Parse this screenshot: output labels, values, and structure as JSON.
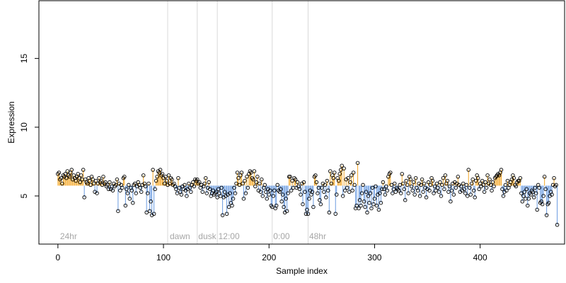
{
  "chart_data": {
    "type": "scatter",
    "title": "",
    "xlabel": "Sample index",
    "ylabel": "Expression",
    "xlim": [
      -18,
      480
    ],
    "ylim": [
      1.5,
      19.2
    ],
    "x_ticks": [
      0,
      100,
      200,
      300,
      400
    ],
    "y_ticks": [
      5,
      10,
      15
    ],
    "baseline": 5.75,
    "grid": false,
    "colors": {
      "above": "#f5a623",
      "below": "#6a9be0",
      "point_stroke": "#000000",
      "vline": "#d9d9d9",
      "annotation_text": "#a6a6a6"
    },
    "annotations": [
      {
        "label": "24hr",
        "x": 2
      },
      {
        "label": "dawn",
        "x": 106
      },
      {
        "label": "dusk",
        "x": 133
      },
      {
        "label": "12:00",
        "x": 152
      },
      {
        "label": "0:00",
        "x": 204
      },
      {
        "label": "48hr",
        "x": 238
      }
    ],
    "vertical_lines": [
      104,
      132,
      151,
      203,
      237
    ],
    "series": [
      {
        "values": [
          6.6,
          6.7,
          6.2,
          6.3,
          5.9,
          6.5,
          6.4,
          6.6,
          6.3,
          6.8,
          6.5,
          6.4,
          6.7,
          6.9,
          6.2,
          6.5,
          6.3,
          6.1,
          6.4,
          6.6,
          6.3,
          6.0,
          6.5,
          6.2,
          6.9,
          4.9,
          6.2,
          6.0,
          5.9,
          6.3,
          6.1,
          5.8,
          6.4,
          6.2,
          5.9,
          5.3,
          6.1,
          5.2,
          5.9,
          6.3,
          6.0,
          6.1,
          5.8,
          6.4,
          5.9,
          6.0,
          5.7,
          5.8,
          5.5,
          6.0,
          5.5,
          5.7,
          5.4,
          5.9,
          5.7,
          5.8,
          6.2,
          3.9,
          5.9,
          5.4,
          5.8,
          5.6,
          6.3,
          6.4,
          4.3,
          5.5,
          5.2,
          5.8,
          4.8,
          5.6,
          5.4,
          4.5,
          5.8,
          5.9,
          5.2,
          5.7,
          6.0,
          5.8,
          5.6,
          5.3,
          5.8,
          6.5,
          5.9,
          5.7,
          3.8,
          5.2,
          5.9,
          3.9,
          4.6,
          3.6,
          6.9,
          3.7,
          5.5,
          6.1,
          6.4,
          6.8,
          6.7,
          6.9,
          6.5,
          6.6,
          6.3,
          5.9,
          6.4,
          6.1,
          5.8,
          6.5,
          5.9,
          6.3,
          6.2,
          5.8,
          5.9,
          5.7,
          5.5,
          5.2,
          6.3,
          5.6,
          5.3,
          5.1,
          5.7,
          5.5,
          5.8,
          5.4,
          5.0,
          5.5,
          5.9,
          5.6,
          5.3,
          5.8,
          6.0,
          5.7,
          6.2,
          6.1,
          6.2,
          5.9,
          6.0,
          5.6,
          5.8,
          5.3,
          5.7,
          5.9,
          6.3,
          5.2,
          5.6,
          6.0,
          5.5,
          5.0,
          5.2,
          5.4,
          5.1,
          5.2,
          5.3,
          4.9,
          5.5,
          5.2,
          5.0,
          5.6,
          3.6,
          4.9,
          5.3,
          5.0,
          3.7,
          5.1,
          4.2,
          5.2,
          4.5,
          4.3,
          4.8,
          5.6,
          5.2,
          5.9,
          6.7,
          6.3,
          5.8,
          6.5,
          6.7,
          5.9,
          4.8,
          6.1,
          5.2,
          6.4,
          5.6,
          6.6,
          6.8,
          6.7,
          6.3,
          6.2,
          6.8,
          5.7,
          6.0,
          6.4,
          5.4,
          5.9,
          5.3,
          6.2,
          5.0,
          5.6,
          5.8,
          5.3,
          4.8,
          5.5,
          5.1,
          5.4,
          4.3,
          4.2,
          5.0,
          5.4,
          4.1,
          4.3,
          5.8,
          5.4,
          5.3,
          5.5,
          4.6,
          5.1,
          4.2,
          3.8,
          4.8,
          3.9,
          5.2,
          6.4,
          6.4,
          5.4,
          6.1,
          5.6,
          6.3,
          6.2,
          5.6,
          6.0,
          5.7,
          5.5,
          5.1,
          5.9,
          4.4,
          6.0,
          5.3,
          3.7,
          4.0,
          3.7,
          4.8,
          5.4,
          5.1,
          5.3,
          4.2,
          6.4,
          6.5,
          6.0,
          5.2,
          5.6,
          4.7,
          4.4,
          5.6,
          5.9,
          5.3,
          5.8,
          4.9,
          6.1,
          5.4,
          3.8,
          6.8,
          5.9,
          6.5,
          6.3,
          6.7,
          3.7,
          5.1,
          6.3,
          6.1,
          6.6,
          6.9,
          7.2,
          5.0,
          7.0,
          5.4,
          6.2,
          5.6,
          6.3,
          5.3,
          6.0,
          6.5,
          5.4,
          6.7,
          5.8,
          4.1,
          4.3,
          7.4,
          4.1,
          4.7,
          4.3,
          5.2,
          5.8,
          4.6,
          4.2,
          5.3,
          3.8,
          5.0,
          4.5,
          5.2,
          4.1,
          5.6,
          4.4,
          4.8,
          5.7,
          4.3,
          5.1,
          4.0,
          5.2,
          4.5,
          5.5,
          6.0,
          5.5,
          5.1,
          5.7,
          5.4,
          6.4,
          6.6,
          6.7,
          5.8,
          5.2,
          5.5,
          5.9,
          5.3,
          5.6,
          5.5,
          5.4,
          5.8,
          5.2,
          6.6,
          5.9,
          5.5,
          4.7,
          6.1,
          5.8,
          5.2,
          6.4,
          6.2,
          5.7,
          5.4,
          6.0,
          5.1,
          6.3,
          5.6,
          5.4,
          5.9,
          5.0,
          5.8,
          6.2,
          5.3,
          5.9,
          5.6,
          4.9,
          5.5,
          6.0,
          5.4,
          5.8,
          6.3,
          6.1,
          5.2,
          5.7,
          5.4,
          5.9,
          5.6,
          5.3,
          6.0,
          5.0,
          5.8,
          6.3,
          5.5,
          6.5,
          5.9,
          6.1,
          5.3,
          5.7,
          4.6,
          5.4,
          5.9,
          5.1,
          6.0,
          5.6,
          5.9,
          6.4,
          5.8,
          5.3,
          5.7,
          5.4,
          5.9,
          5.5,
          5.2,
          5.8,
          5.0,
          6.9,
          5.6,
          5.1,
          5.9,
          6.2,
          5.4,
          4.9,
          6.1,
          6.5,
          6.3,
          5.5,
          5.9,
          5.7,
          6.1,
          5.8,
          5.3,
          6.0,
          5.6,
          6.5,
          5.9,
          6.2,
          5.8,
          5.4,
          6.0,
          5.7,
          6.3,
          6.4,
          6.5,
          6.6,
          6.5,
          6.7,
          6.9,
          5.5,
          5.0,
          5.3,
          5.8,
          5.4,
          6.1,
          5.6,
          5.8,
          6.0,
          6.2,
          6.5,
          6.3,
          5.8,
          5.7,
          6.0,
          6.1,
          6.1,
          6.3,
          5.2,
          4.6,
          5.0,
          5.3,
          4.8,
          5.5,
          4.3,
          4.8,
          5.2,
          5.1,
          5.4,
          5.3,
          4.9,
          5.6,
          5.2,
          4.0,
          5.8,
          5.6,
          4.5,
          4.6,
          4.4,
          5.0,
          6.4,
          5.5,
          3.6,
          4.4,
          4.5,
          5.0,
          5.3,
          5.1,
          5.8,
          6.3,
          5.7,
          5.8,
          2.9
        ]
      }
    ]
  }
}
